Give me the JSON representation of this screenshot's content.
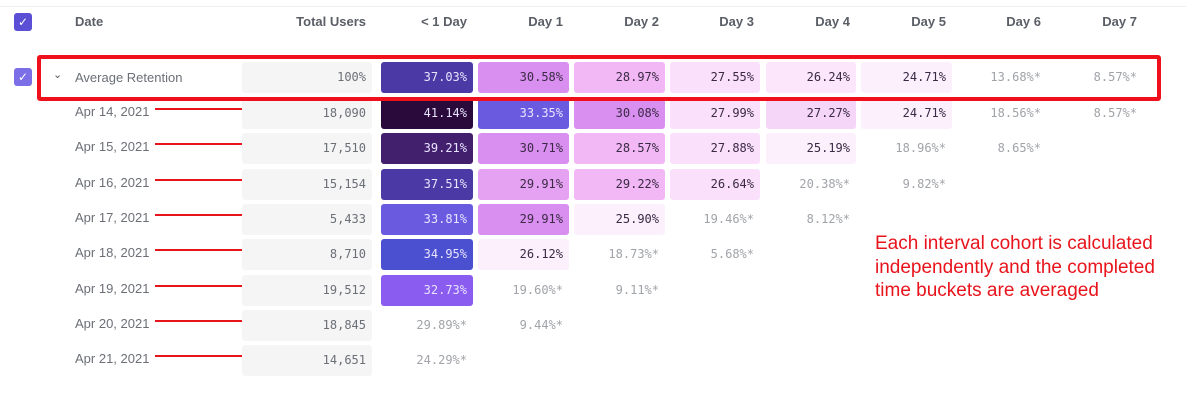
{
  "header": {
    "checkbox_checked": true,
    "columns": [
      "Date",
      "Total Users",
      "< 1 Day",
      "Day 1",
      "Day 2",
      "Day 3",
      "Day 4",
      "Day 5",
      "Day 6",
      "Day 7"
    ]
  },
  "average": {
    "label": "Average Retention",
    "checkbox_checked": true,
    "expanded": true,
    "total": "100%",
    "cells": [
      {
        "v": "37.03%",
        "bg": "#4b3aa5",
        "fg": "#e8e4ff"
      },
      {
        "v": "30.58%",
        "bg": "#d98ff0",
        "fg": "#3a2a44"
      },
      {
        "v": "28.97%",
        "bg": "#f2b8f5",
        "fg": "#3a2a44"
      },
      {
        "v": "27.55%",
        "bg": "#fae0fb",
        "fg": "#3a2a44"
      },
      {
        "v": "26.24%",
        "bg": "#fbe6fb",
        "fg": "#3a2a44"
      },
      {
        "v": "24.71%",
        "bg": "#fdf0fd",
        "fg": "#3a2a44"
      },
      {
        "v": "13.68%*",
        "bg": "",
        "fg": "#a0a3a8"
      },
      {
        "v": "8.57%*",
        "bg": "",
        "fg": "#a0a3a8"
      }
    ]
  },
  "rows": [
    {
      "date": "Apr 14, 2021",
      "total": "18,090",
      "cells": [
        {
          "v": "41.14%",
          "bg": "#2a0a3a",
          "fg": "#e8e4ff"
        },
        {
          "v": "33.35%",
          "bg": "#6a5ae0",
          "fg": "#e8e4ff"
        },
        {
          "v": "30.08%",
          "bg": "#d98ff0",
          "fg": "#3a2a44"
        },
        {
          "v": "27.99%",
          "bg": "#fae0fb",
          "fg": "#3a2a44"
        },
        {
          "v": "27.27%",
          "bg": "#f6d6f8",
          "fg": "#3a2a44"
        },
        {
          "v": "24.71%",
          "bg": "#fdf0fd",
          "fg": "#3a2a44"
        },
        {
          "v": "18.56%*",
          "bg": "",
          "fg": "#a0a3a8"
        },
        {
          "v": "8.57%*",
          "bg": "",
          "fg": "#a0a3a8"
        }
      ]
    },
    {
      "date": "Apr 15, 2021",
      "total": "17,510",
      "cells": [
        {
          "v": "39.21%",
          "bg": "#43206e",
          "fg": "#e8e4ff"
        },
        {
          "v": "30.71%",
          "bg": "#d98ff0",
          "fg": "#3a2a44"
        },
        {
          "v": "28.57%",
          "bg": "#f2b8f5",
          "fg": "#3a2a44"
        },
        {
          "v": "27.88%",
          "bg": "#fae0fb",
          "fg": "#3a2a44"
        },
        {
          "v": "25.19%",
          "bg": "#fdf0fd",
          "fg": "#3a2a44"
        },
        {
          "v": "18.96%*",
          "bg": "",
          "fg": "#a0a3a8"
        },
        {
          "v": "8.65%*",
          "bg": "",
          "fg": "#a0a3a8"
        }
      ]
    },
    {
      "date": "Apr 16, 2021",
      "total": "15,154",
      "cells": [
        {
          "v": "37.51%",
          "bg": "#4b3aa5",
          "fg": "#e8e4ff"
        },
        {
          "v": "29.91%",
          "bg": "#e6a2f2",
          "fg": "#3a2a44"
        },
        {
          "v": "29.22%",
          "bg": "#f2b8f5",
          "fg": "#3a2a44"
        },
        {
          "v": "26.64%",
          "bg": "#fae0fb",
          "fg": "#3a2a44"
        },
        {
          "v": "20.38%*",
          "bg": "",
          "fg": "#a0a3a8"
        },
        {
          "v": "9.82%*",
          "bg": "",
          "fg": "#a0a3a8"
        }
      ]
    },
    {
      "date": "Apr 17, 2021",
      "total": "5,433",
      "cells": [
        {
          "v": "33.81%",
          "bg": "#6a5ae0",
          "fg": "#e8e4ff"
        },
        {
          "v": "29.91%",
          "bg": "#d98ff0",
          "fg": "#3a2a44"
        },
        {
          "v": "25.90%",
          "bg": "#fdf0fd",
          "fg": "#3a2a44"
        },
        {
          "v": "19.46%*",
          "bg": "",
          "fg": "#a0a3a8"
        },
        {
          "v": "8.12%*",
          "bg": "",
          "fg": "#a0a3a8"
        }
      ]
    },
    {
      "date": "Apr 18, 2021",
      "total": "8,710",
      "cells": [
        {
          "v": "34.95%",
          "bg": "#4b50d0",
          "fg": "#e8e4ff"
        },
        {
          "v": "26.12%",
          "bg": "#fdf0fd",
          "fg": "#3a2a44"
        },
        {
          "v": "18.73%*",
          "bg": "",
          "fg": "#a0a3a8"
        },
        {
          "v": "5.68%*",
          "bg": "",
          "fg": "#a0a3a8"
        }
      ]
    },
    {
      "date": "Apr 19, 2021",
      "total": "19,512",
      "cells": [
        {
          "v": "32.73%",
          "bg": "#8b5cf0",
          "fg": "#e8e4ff"
        },
        {
          "v": "19.60%*",
          "bg": "",
          "fg": "#a0a3a8"
        },
        {
          "v": "9.11%*",
          "bg": "",
          "fg": "#a0a3a8"
        }
      ]
    },
    {
      "date": "Apr 20, 2021",
      "total": "18,845",
      "cells": [
        {
          "v": "29.89%*",
          "bg": "",
          "fg": "#a0a3a8"
        },
        {
          "v": "9.44%*",
          "bg": "",
          "fg": "#a0a3a8"
        }
      ]
    },
    {
      "date": "Apr 21, 2021",
      "total": "14,651",
      "cells": [
        {
          "v": "24.29%*",
          "bg": "",
          "fg": "#a0a3a8"
        }
      ]
    }
  ],
  "annotation": {
    "text": "Each interval cohort is calculated independently and the completed time buckets are averaged",
    "color": "#e8141c"
  }
}
